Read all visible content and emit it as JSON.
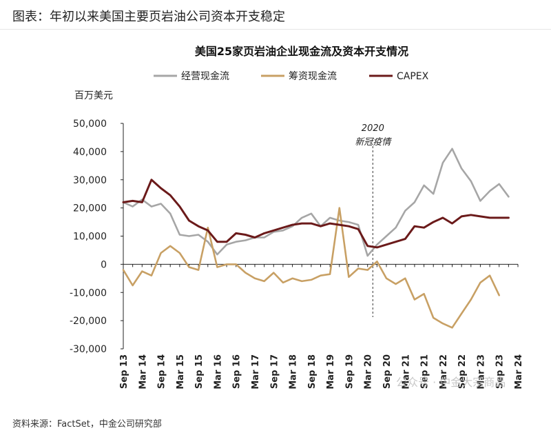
{
  "page": {
    "caption": "图表：年初以来美国主要页岩油公司资本开支稳定",
    "source": "资料来源：FactSet，中金公司研究部",
    "watermark": "公众号 · 中金大宗商品"
  },
  "chart_data": {
    "type": "line",
    "title": "美国25家页岩油企业现金流及资本开支情况",
    "ylabel": "百万美元",
    "xlabel": "",
    "ylim": [
      -30000,
      50000
    ],
    "yticks": [
      -30000,
      -20000,
      -10000,
      0,
      10000,
      20000,
      30000,
      40000,
      50000
    ],
    "ytick_labels": [
      "-30,000",
      "-20,000",
      "-10,000",
      "0",
      "10,000",
      "20,000",
      "30,000",
      "40,000",
      "50,000"
    ],
    "xlim": [
      0,
      42
    ],
    "x_tick_labels": [
      {
        "q": 0,
        "month": "Sep",
        "year": "13"
      },
      {
        "q": 2,
        "month": "Mar",
        "year": "14"
      },
      {
        "q": 4,
        "month": "Sep",
        "year": "14"
      },
      {
        "q": 6,
        "month": "Mar",
        "year": "15"
      },
      {
        "q": 8,
        "month": "Sep",
        "year": "15"
      },
      {
        "q": 10,
        "month": "Mar",
        "year": "16"
      },
      {
        "q": 12,
        "month": "Sep",
        "year": "16"
      },
      {
        "q": 14,
        "month": "Mar",
        "year": "17"
      },
      {
        "q": 16,
        "month": "Sep",
        "year": "17"
      },
      {
        "q": 18,
        "month": "Mar",
        "year": "18"
      },
      {
        "q": 20,
        "month": "Sep",
        "year": "18"
      },
      {
        "q": 22,
        "month": "Mar",
        "year": "19"
      },
      {
        "q": 24,
        "month": "Sep",
        "year": "19"
      },
      {
        "q": 26,
        "month": "Mar",
        "year": "20"
      },
      {
        "q": 28,
        "month": "Sep",
        "year": "20"
      },
      {
        "q": 30,
        "month": "Mar",
        "year": "21"
      },
      {
        "q": 32,
        "month": "Sep",
        "year": "21"
      },
      {
        "q": 34,
        "month": "Mar",
        "year": "22"
      },
      {
        "q": 36,
        "month": "Sep",
        "year": "22"
      },
      {
        "q": 38,
        "month": "Mar",
        "year": "23"
      },
      {
        "q": 40,
        "month": "Sep",
        "year": "23"
      },
      {
        "q": 42,
        "month": "Mar",
        "year": "24"
      }
    ],
    "grid": false,
    "legend_position": "top",
    "annotation": {
      "q": 27,
      "line1": "2020",
      "line2": "新冠疫情",
      "style": "dashed-vertical"
    },
    "series": [
      {
        "name": "经营现金流",
        "color": "#a6a6a6",
        "points": [
          [
            0,
            22000
          ],
          [
            1,
            20500
          ],
          [
            2,
            23000
          ],
          [
            3,
            20500
          ],
          [
            4,
            21500
          ],
          [
            5,
            18000
          ],
          [
            6,
            10500
          ],
          [
            7,
            10000
          ],
          [
            8,
            10500
          ],
          [
            9,
            8000
          ],
          [
            10,
            3500
          ],
          [
            11,
            7000
          ],
          [
            12,
            8000
          ],
          [
            13,
            8500
          ],
          [
            14,
            9500
          ],
          [
            15,
            9500
          ],
          [
            16,
            11500
          ],
          [
            17,
            12000
          ],
          [
            18,
            13500
          ],
          [
            19,
            16500
          ],
          [
            20,
            18000
          ],
          [
            21,
            13500
          ],
          [
            22,
            16500
          ],
          [
            23,
            15500
          ],
          [
            24,
            15000
          ],
          [
            25,
            14000
          ],
          [
            26,
            3000
          ],
          [
            27,
            7000
          ],
          [
            28,
            10000
          ],
          [
            29,
            13000
          ],
          [
            30,
            19000
          ],
          [
            31,
            22000
          ],
          [
            32,
            28000
          ],
          [
            33,
            25000
          ],
          [
            34,
            36000
          ],
          [
            35,
            41000
          ],
          [
            36,
            34000
          ],
          [
            37,
            29500
          ],
          [
            38,
            22500
          ],
          [
            39,
            26000
          ],
          [
            40,
            28500
          ],
          [
            41,
            24000
          ]
        ]
      },
      {
        "name": "筹资现金流",
        "color": "#c8a064",
        "points": [
          [
            0,
            -2000
          ],
          [
            1,
            -7500
          ],
          [
            2,
            -2500
          ],
          [
            3,
            -4000
          ],
          [
            4,
            4000
          ],
          [
            5,
            6500
          ],
          [
            6,
            4000
          ],
          [
            7,
            -1000
          ],
          [
            8,
            -2000
          ],
          [
            9,
            13000
          ],
          [
            10,
            -1000
          ],
          [
            11,
            0
          ],
          [
            12,
            0
          ],
          [
            13,
            -3000
          ],
          [
            14,
            -5000
          ],
          [
            15,
            -6000
          ],
          [
            16,
            -3000
          ],
          [
            17,
            -6500
          ],
          [
            18,
            -5000
          ],
          [
            19,
            -6000
          ],
          [
            20,
            -5500
          ],
          [
            21,
            -4000
          ],
          [
            22,
            -3500
          ],
          [
            23,
            20000
          ],
          [
            24,
            -4500
          ],
          [
            25,
            -1500
          ],
          [
            26,
            -2000
          ],
          [
            27,
            1000
          ],
          [
            28,
            -5000
          ],
          [
            29,
            -7000
          ],
          [
            30,
            -5000
          ],
          [
            31,
            -12500
          ],
          [
            32,
            -10500
          ],
          [
            33,
            -19000
          ],
          [
            34,
            -21000
          ],
          [
            35,
            -22500
          ],
          [
            36,
            -17500
          ],
          [
            37,
            -12500
          ],
          [
            38,
            -6500
          ],
          [
            39,
            -4000
          ],
          [
            40,
            -11000
          ]
        ]
      },
      {
        "name": "CAPEX",
        "color": "#6b1a1a",
        "points": [
          [
            0,
            22000
          ],
          [
            1,
            22500
          ],
          [
            2,
            22000
          ],
          [
            3,
            30000
          ],
          [
            4,
            27000
          ],
          [
            5,
            24500
          ],
          [
            6,
            20500
          ],
          [
            7,
            15500
          ],
          [
            8,
            13500
          ],
          [
            9,
            12000
          ],
          [
            10,
            8000
          ],
          [
            11,
            8000
          ],
          [
            12,
            11000
          ],
          [
            13,
            10500
          ],
          [
            14,
            9500
          ],
          [
            15,
            11000
          ],
          [
            16,
            12000
          ],
          [
            17,
            13000
          ],
          [
            18,
            14000
          ],
          [
            19,
            14500
          ],
          [
            20,
            14500
          ],
          [
            21,
            13500
          ],
          [
            22,
            14500
          ],
          [
            23,
            14000
          ],
          [
            24,
            13500
          ],
          [
            25,
            12500
          ],
          [
            26,
            6500
          ],
          [
            27,
            6000
          ],
          [
            28,
            7000
          ],
          [
            29,
            8000
          ],
          [
            30,
            9000
          ],
          [
            31,
            13500
          ],
          [
            32,
            13000
          ],
          [
            33,
            15000
          ],
          [
            34,
            16500
          ],
          [
            35,
            14500
          ],
          [
            36,
            17000
          ],
          [
            37,
            17500
          ],
          [
            38,
            17000
          ],
          [
            39,
            16500
          ],
          [
            40,
            16500
          ],
          [
            41,
            16500
          ]
        ]
      }
    ]
  }
}
